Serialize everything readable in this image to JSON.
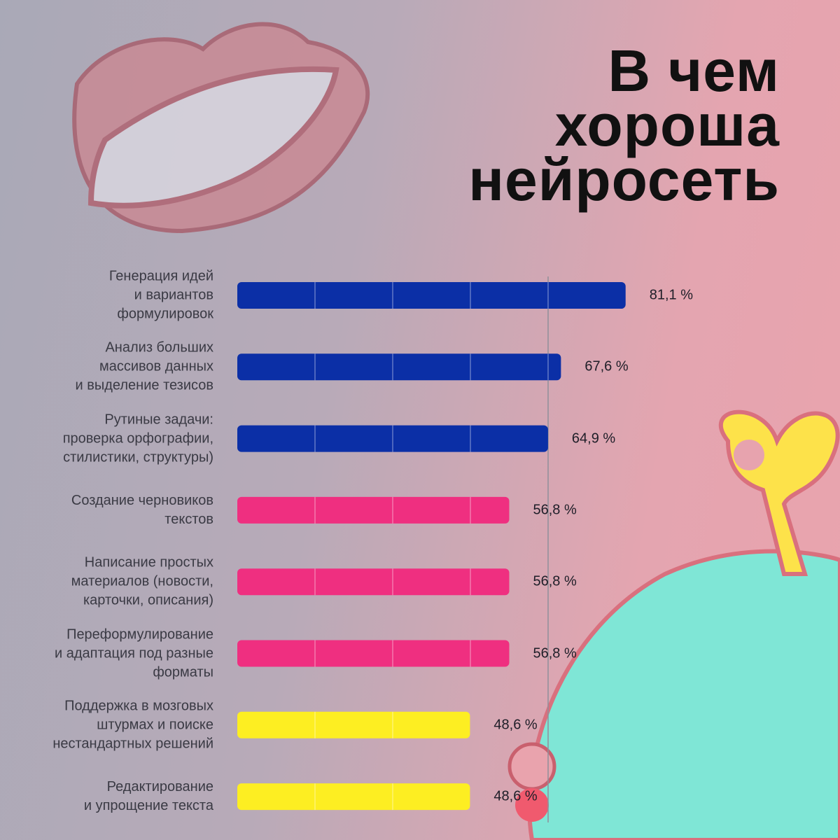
{
  "chart_data": {
    "type": "bar",
    "orientation": "horizontal",
    "title": "В чем хороша нейросеть",
    "categories": [
      "Генерация идей\nи вариантов\nформулировок",
      "Анализ больших\nмассивов данных\nи выделение тезисов",
      "Рутиные задачи:\nпроверка орфографии,\nстилистики, структуры)",
      "Создание черновиков\nтекстов",
      "Написание простых\nматериалов (новости,\nкарточки, описания)",
      "Переформулирование\nи адаптация под разные\nформаты",
      "Поддержка в мозговых\nштурмах и поиске\nнестандартных решений",
      "Редактирование\nи упрощение текста"
    ],
    "values": [
      81.1,
      67.6,
      64.9,
      56.8,
      56.8,
      56.8,
      48.6,
      48.6
    ],
    "value_labels": [
      "81,1 %",
      "67,6 %",
      "64,9 %",
      "56,8 %",
      "56,8 %",
      "56,8 %",
      "48,6 %",
      "48,6 %"
    ],
    "colors": [
      "#0b2fa6",
      "#0b2fa6",
      "#0b2fa6",
      "#ef2f80",
      "#ef2f80",
      "#ef2f80",
      "#fdee22",
      "#fdee22"
    ],
    "xlim": [
      0,
      100
    ]
  }
}
